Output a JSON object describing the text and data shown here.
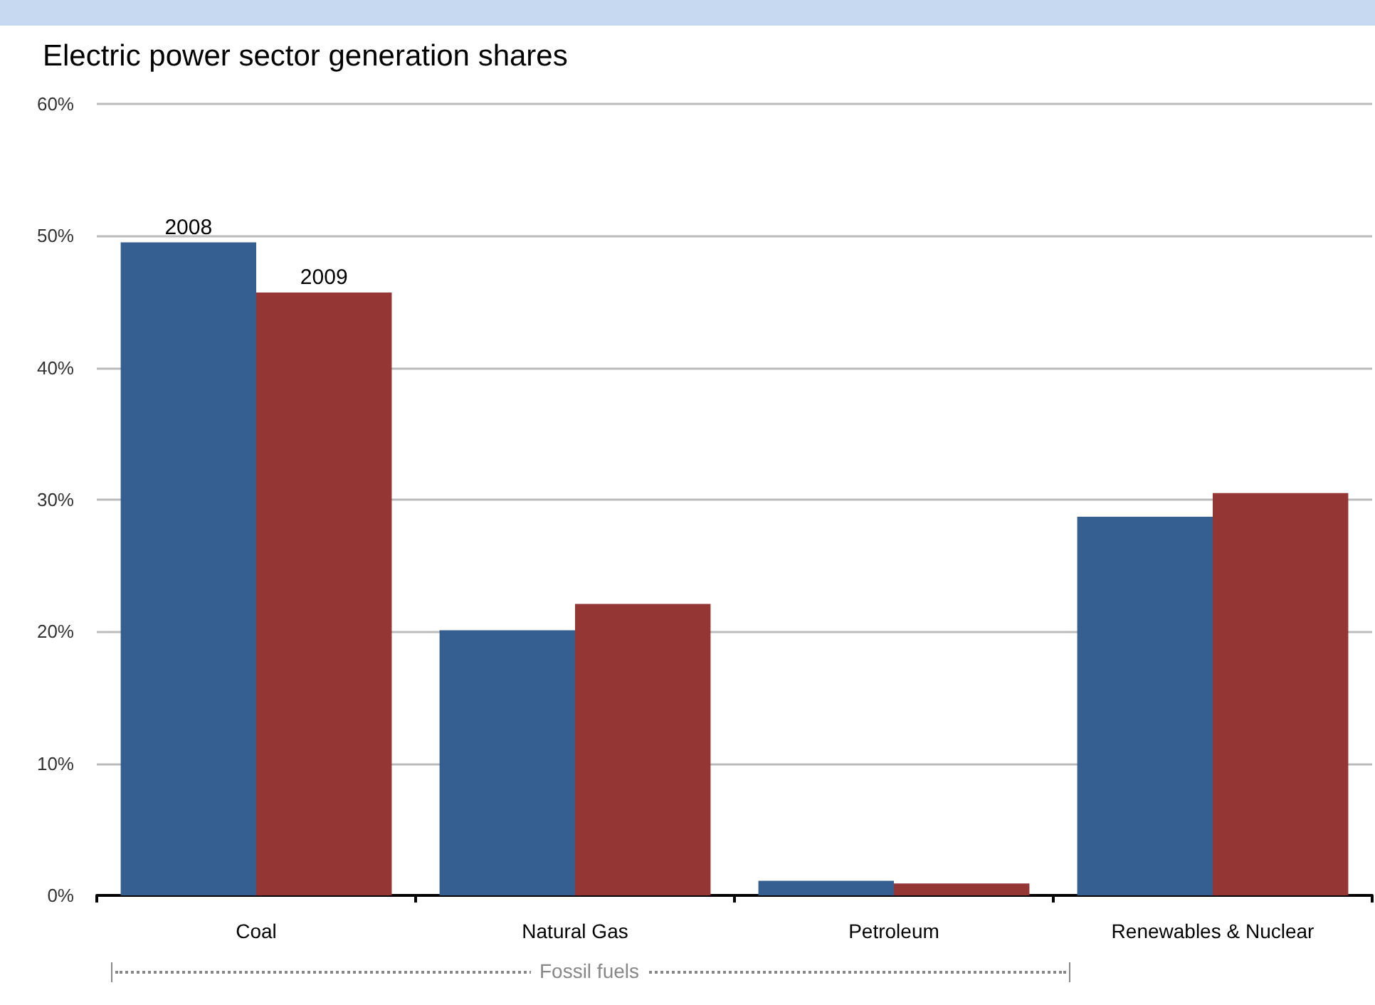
{
  "chart_data": {
    "type": "bar",
    "title": "Electric power sector generation shares",
    "categories": [
      "Coal",
      "Natural Gas",
      "Petroleum",
      "Renewables & Nuclear"
    ],
    "series": [
      {
        "name": "2008",
        "color": "#365f91",
        "values": [
          49.5,
          20.1,
          1.1,
          28.7
        ]
      },
      {
        "name": "2009",
        "color": "#943634",
        "values": [
          45.7,
          22.1,
          0.9,
          30.5
        ]
      }
    ],
    "ylim": [
      0,
      60
    ],
    "yticks": [
      {
        "value": 0,
        "label": "0%"
      },
      {
        "value": 10,
        "label": "10%"
      },
      {
        "value": 20,
        "label": "20%"
      },
      {
        "value": 30,
        "label": "30%"
      },
      {
        "value": 40,
        "label": "40%"
      },
      {
        "value": 50,
        "label": "50%"
      },
      {
        "value": 60,
        "label": "60%"
      }
    ],
    "grid": "y",
    "legend": false,
    "annotations": [
      "Fossil fuels"
    ]
  }
}
